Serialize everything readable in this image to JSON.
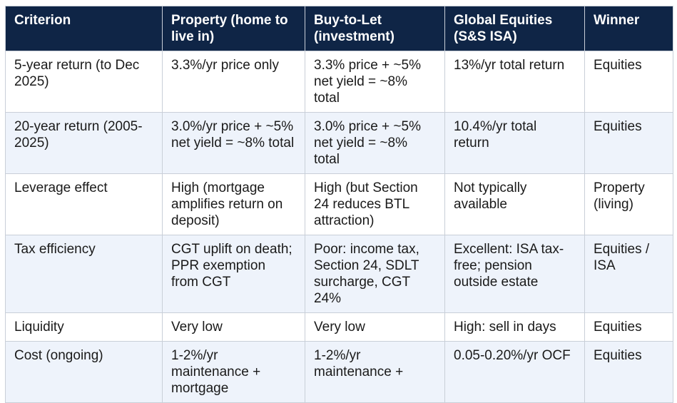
{
  "table": {
    "headers": [
      "Criterion",
      "Property (home to live in)",
      "Buy-to-Let (investment)",
      "Global Equities (S&S ISA)",
      "Winner"
    ],
    "rows": [
      [
        "5-year return (to Dec 2025)",
        "3.3%/yr price only",
        "3.3% price + ~5% net yield = ~8% total",
        "13%/yr total return",
        "Equities"
      ],
      [
        "20-year return (2005-2025)",
        "3.0%/yr price + ~5% net yield = ~8% total",
        "3.0% price + ~5% net yield = ~8% total",
        "10.4%/yr total return",
        "Equities"
      ],
      [
        "Leverage effect",
        "High (mortgage amplifies return on deposit)",
        "High (but Section 24 reduces BTL attraction)",
        "Not typically available",
        "Property (living)"
      ],
      [
        "Tax efficiency",
        "CGT uplift on death; PPR exemption from CGT",
        "Poor: income tax, Section 24, SDLT surcharge, CGT 24%",
        "Excellent: ISA tax-free; pension outside estate",
        "Equities / ISA"
      ],
      [
        "Liquidity",
        "Very low",
        "Very low",
        "High: sell in days",
        "Equities"
      ],
      [
        "Cost (ongoing)",
        "1-2%/yr maintenance + mortgage",
        "1-2%/yr maintenance +",
        "0.05-0.20%/yr OCF",
        "Equities"
      ]
    ]
  },
  "colors": {
    "header_bg": "#0f2546",
    "header_text": "#ffffff",
    "row_alt_bg": "#eef3fb",
    "border": "#c9cfd8"
  }
}
